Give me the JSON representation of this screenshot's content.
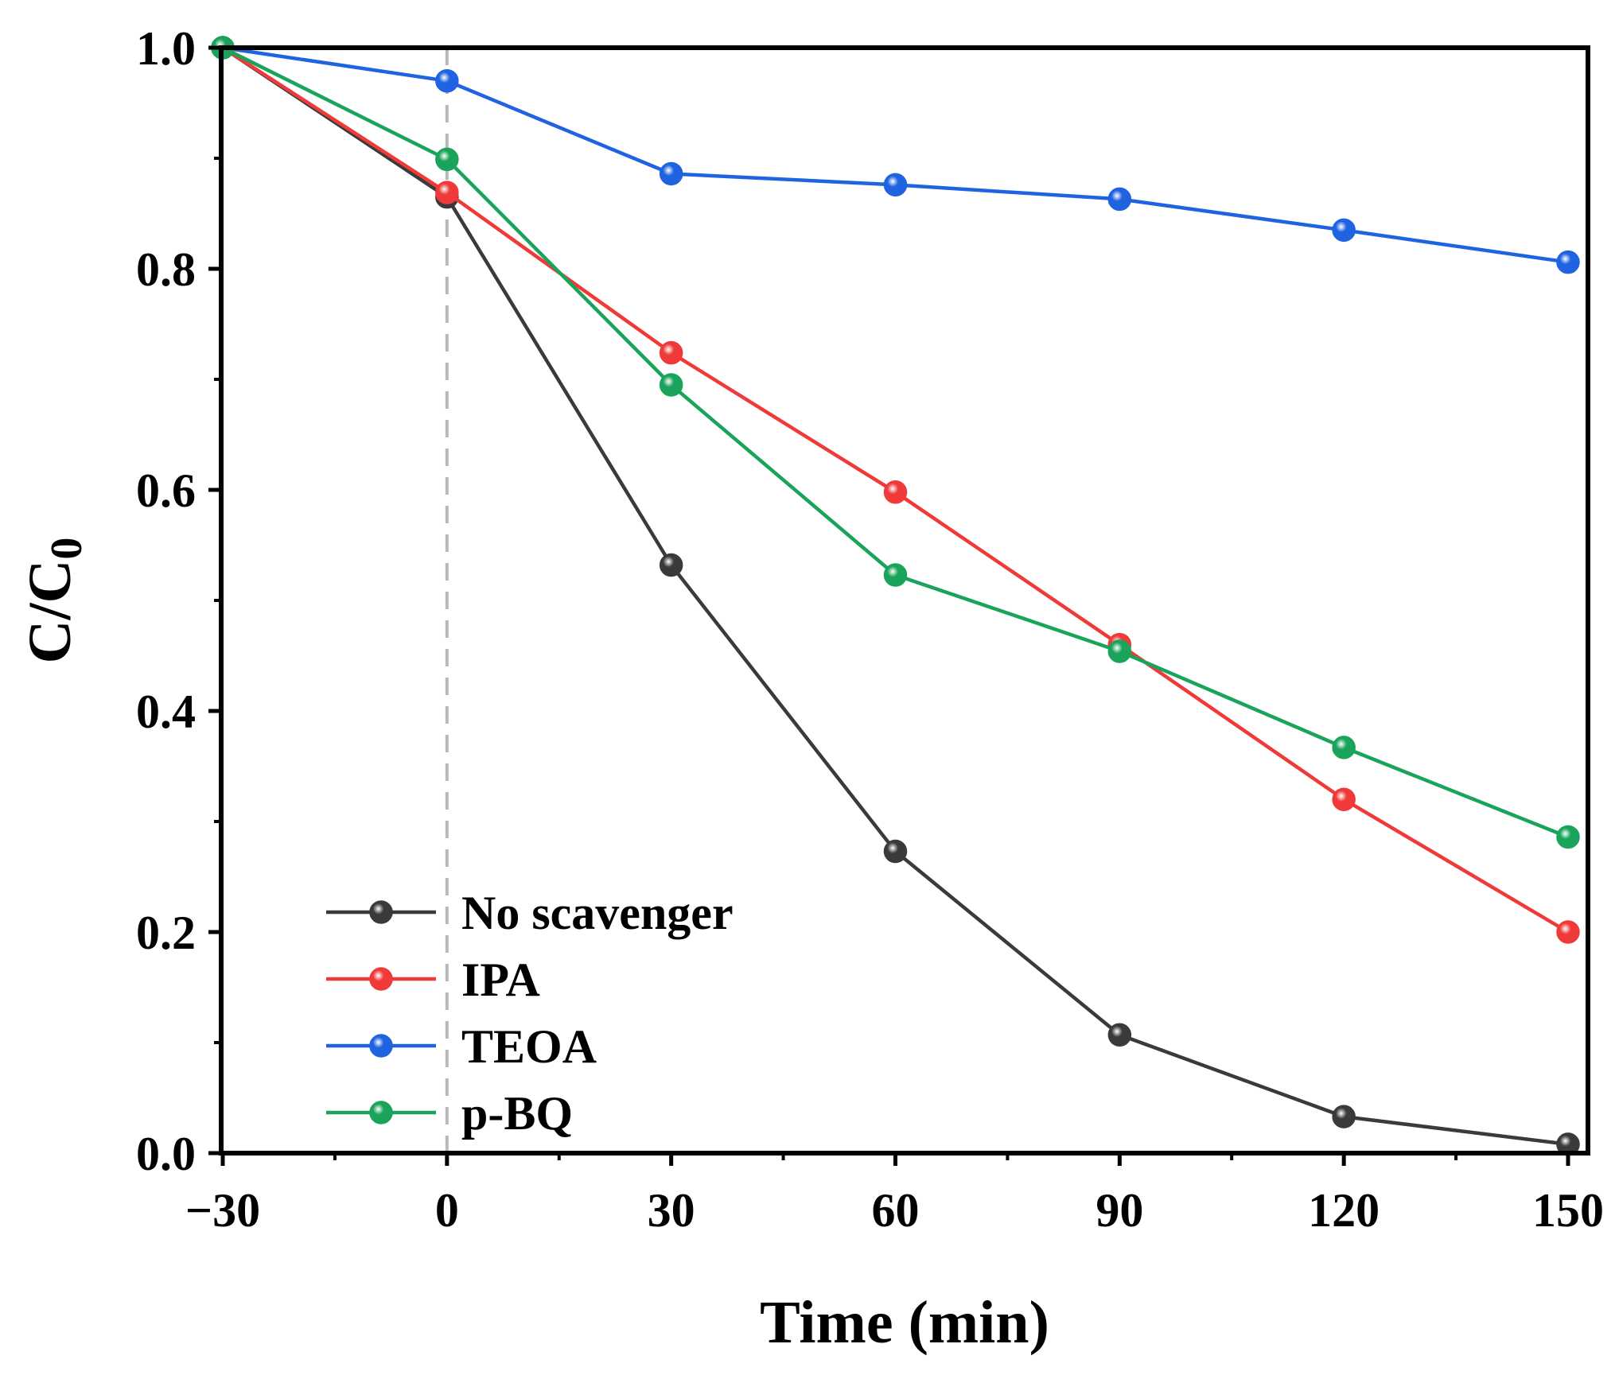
{
  "chart_data": {
    "type": "line",
    "title": "",
    "xlabel": "Time (min)",
    "ylabel": {
      "main": "C/C",
      "subscript": "0"
    },
    "xlim": [
      -30,
      150
    ],
    "ylim": [
      0.0,
      1.0
    ],
    "x": [
      -30,
      0,
      30,
      60,
      90,
      120,
      150
    ],
    "xticks": [
      -30,
      0,
      30,
      60,
      90,
      120,
      150
    ],
    "xtick_labels": [
      "−30",
      "0",
      "30",
      "60",
      "90",
      "120",
      "150"
    ],
    "yticks": [
      0.0,
      0.2,
      0.4,
      0.6,
      0.8,
      1.0
    ],
    "ytick_labels": [
      "0.0",
      "0.2",
      "0.4",
      "0.6",
      "0.8",
      "1.0"
    ],
    "reference_line_x": 0,
    "legend_position": "bottom-left",
    "series": [
      {
        "name": "No scavenger",
        "color": "#3a3a3a",
        "values": [
          1.0,
          0.865,
          0.532,
          0.273,
          0.107,
          0.033,
          0.008
        ]
      },
      {
        "name": "IPA",
        "color": "#f03a3a",
        "values": [
          1.0,
          0.869,
          0.724,
          0.598,
          0.46,
          0.32,
          0.2
        ]
      },
      {
        "name": "TEOA",
        "color": "#1f63e0",
        "values": [
          1.0,
          0.97,
          0.886,
          0.876,
          0.863,
          0.835,
          0.806
        ]
      },
      {
        "name": "p-BQ",
        "color": "#1aa35a",
        "values": [
          1.0,
          0.899,
          0.695,
          0.523,
          0.454,
          0.367,
          0.286
        ]
      }
    ]
  }
}
